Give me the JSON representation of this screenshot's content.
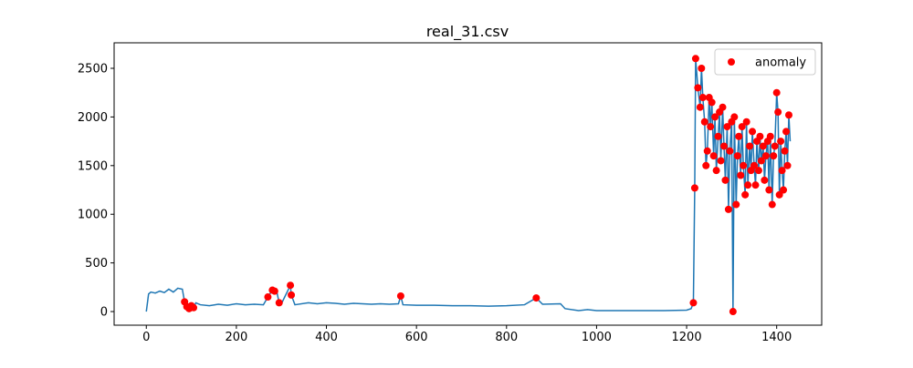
{
  "chart_data": {
    "type": "line",
    "title": "real_31.csv",
    "xlim": [
      -71.5,
      1500
    ],
    "ylim": [
      -140,
      2762
    ],
    "xticks": [
      0,
      200,
      400,
      600,
      800,
      1000,
      1200,
      1400
    ],
    "yticks": [
      0,
      500,
      1000,
      1500,
      2000,
      2500
    ],
    "legend": "upper right",
    "series": [
      {
        "kind": "line",
        "color": "#1f77b4",
        "x": [
          0,
          5,
          10,
          20,
          30,
          40,
          50,
          60,
          70,
          80,
          85,
          90,
          95,
          100,
          105,
          110,
          120,
          140,
          160,
          180,
          200,
          220,
          240,
          260,
          270,
          280,
          285,
          290,
          295,
          300,
          320,
          322,
          330,
          360,
          380,
          400,
          420,
          440,
          460,
          480,
          500,
          520,
          540,
          560,
          565,
          570,
          600,
          640,
          680,
          720,
          760,
          800,
          840,
          866,
          880,
          920,
          930,
          960,
          980,
          1000,
          1050,
          1100,
          1150,
          1200,
          1210,
          1215,
          1218,
          1220,
          1225,
          1230,
          1233,
          1236,
          1240,
          1243,
          1246,
          1250,
          1253,
          1256,
          1260,
          1263,
          1266,
          1270,
          1273,
          1276,
          1280,
          1283,
          1286,
          1290,
          1293,
          1296,
          1300,
          1303,
          1306,
          1310,
          1313,
          1316,
          1320,
          1323,
          1326,
          1330,
          1333,
          1336,
          1340,
          1343,
          1346,
          1350,
          1353,
          1356,
          1360,
          1363,
          1366,
          1370,
          1373,
          1376,
          1380,
          1383,
          1386,
          1390,
          1393,
          1396,
          1400,
          1403,
          1406,
          1409,
          1412,
          1415,
          1418,
          1421,
          1424,
          1427,
          1430
        ],
        "values": [
          0,
          180,
          200,
          190,
          210,
          195,
          230,
          200,
          240,
          230,
          100,
          50,
          30,
          60,
          40,
          90,
          70,
          60,
          75,
          65,
          80,
          70,
          75,
          70,
          150,
          220,
          210,
          200,
          90,
          80,
          270,
          170,
          70,
          90,
          80,
          90,
          85,
          75,
          85,
          80,
          75,
          80,
          75,
          80,
          160,
          70,
          65,
          65,
          60,
          60,
          55,
          60,
          70,
          140,
          75,
          80,
          30,
          10,
          20,
          10,
          10,
          10,
          10,
          15,
          30,
          90,
          1270,
          2600,
          2300,
          2100,
          2500,
          2200,
          1950,
          1500,
          1650,
          2200,
          1900,
          2150,
          1600,
          2000,
          1450,
          1800,
          2050,
          1550,
          2100,
          1700,
          1350,
          1900,
          1050,
          1650,
          1950,
          0,
          2000,
          1100,
          1600,
          1800,
          1400,
          1900,
          1500,
          1200,
          1950,
          1300,
          1700,
          1450,
          1850,
          1500,
          1300,
          1750,
          1450,
          1800,
          1550,
          1700,
          1350,
          1600,
          1750,
          1250,
          1800,
          1100,
          1600,
          1700,
          2250,
          2050,
          1200,
          1750,
          1450,
          1250,
          1650,
          1850,
          1500,
          2020,
          1750
        ]
      },
      {
        "kind": "scatter",
        "name": "anomaly",
        "color": "#ff0000",
        "x": [
          85,
          90,
          95,
          100,
          105,
          270,
          280,
          285,
          295,
          320,
          322,
          565,
          866,
          1215,
          1218,
          1220,
          1225,
          1230,
          1233,
          1236,
          1240,
          1243,
          1246,
          1250,
          1253,
          1256,
          1260,
          1263,
          1266,
          1270,
          1273,
          1276,
          1280,
          1283,
          1286,
          1290,
          1293,
          1296,
          1300,
          1303,
          1306,
          1310,
          1313,
          1316,
          1320,
          1323,
          1326,
          1330,
          1333,
          1336,
          1340,
          1343,
          1346,
          1350,
          1353,
          1356,
          1360,
          1363,
          1366,
          1370,
          1373,
          1376,
          1380,
          1383,
          1386,
          1390,
          1393,
          1396,
          1400,
          1403,
          1406,
          1409,
          1412,
          1415,
          1418,
          1421,
          1424,
          1427
        ],
        "values": [
          100,
          50,
          30,
          60,
          40,
          150,
          220,
          210,
          90,
          270,
          170,
          160,
          140,
          90,
          1270,
          2600,
          2300,
          2100,
          2500,
          2200,
          1950,
          1500,
          1650,
          2200,
          1900,
          2150,
          1600,
          2000,
          1450,
          1800,
          2050,
          1550,
          2100,
          1700,
          1350,
          1900,
          1050,
          1650,
          1950,
          0,
          2000,
          1100,
          1600,
          1800,
          1400,
          1900,
          1500,
          1200,
          1950,
          1300,
          1700,
          1450,
          1850,
          1500,
          1300,
          1750,
          1450,
          1800,
          1550,
          1700,
          1350,
          1600,
          1750,
          1250,
          1800,
          1100,
          1600,
          1700,
          2250,
          2050,
          1200,
          1750,
          1450,
          1250,
          1650,
          1850,
          1500,
          2020
        ]
      }
    ]
  }
}
